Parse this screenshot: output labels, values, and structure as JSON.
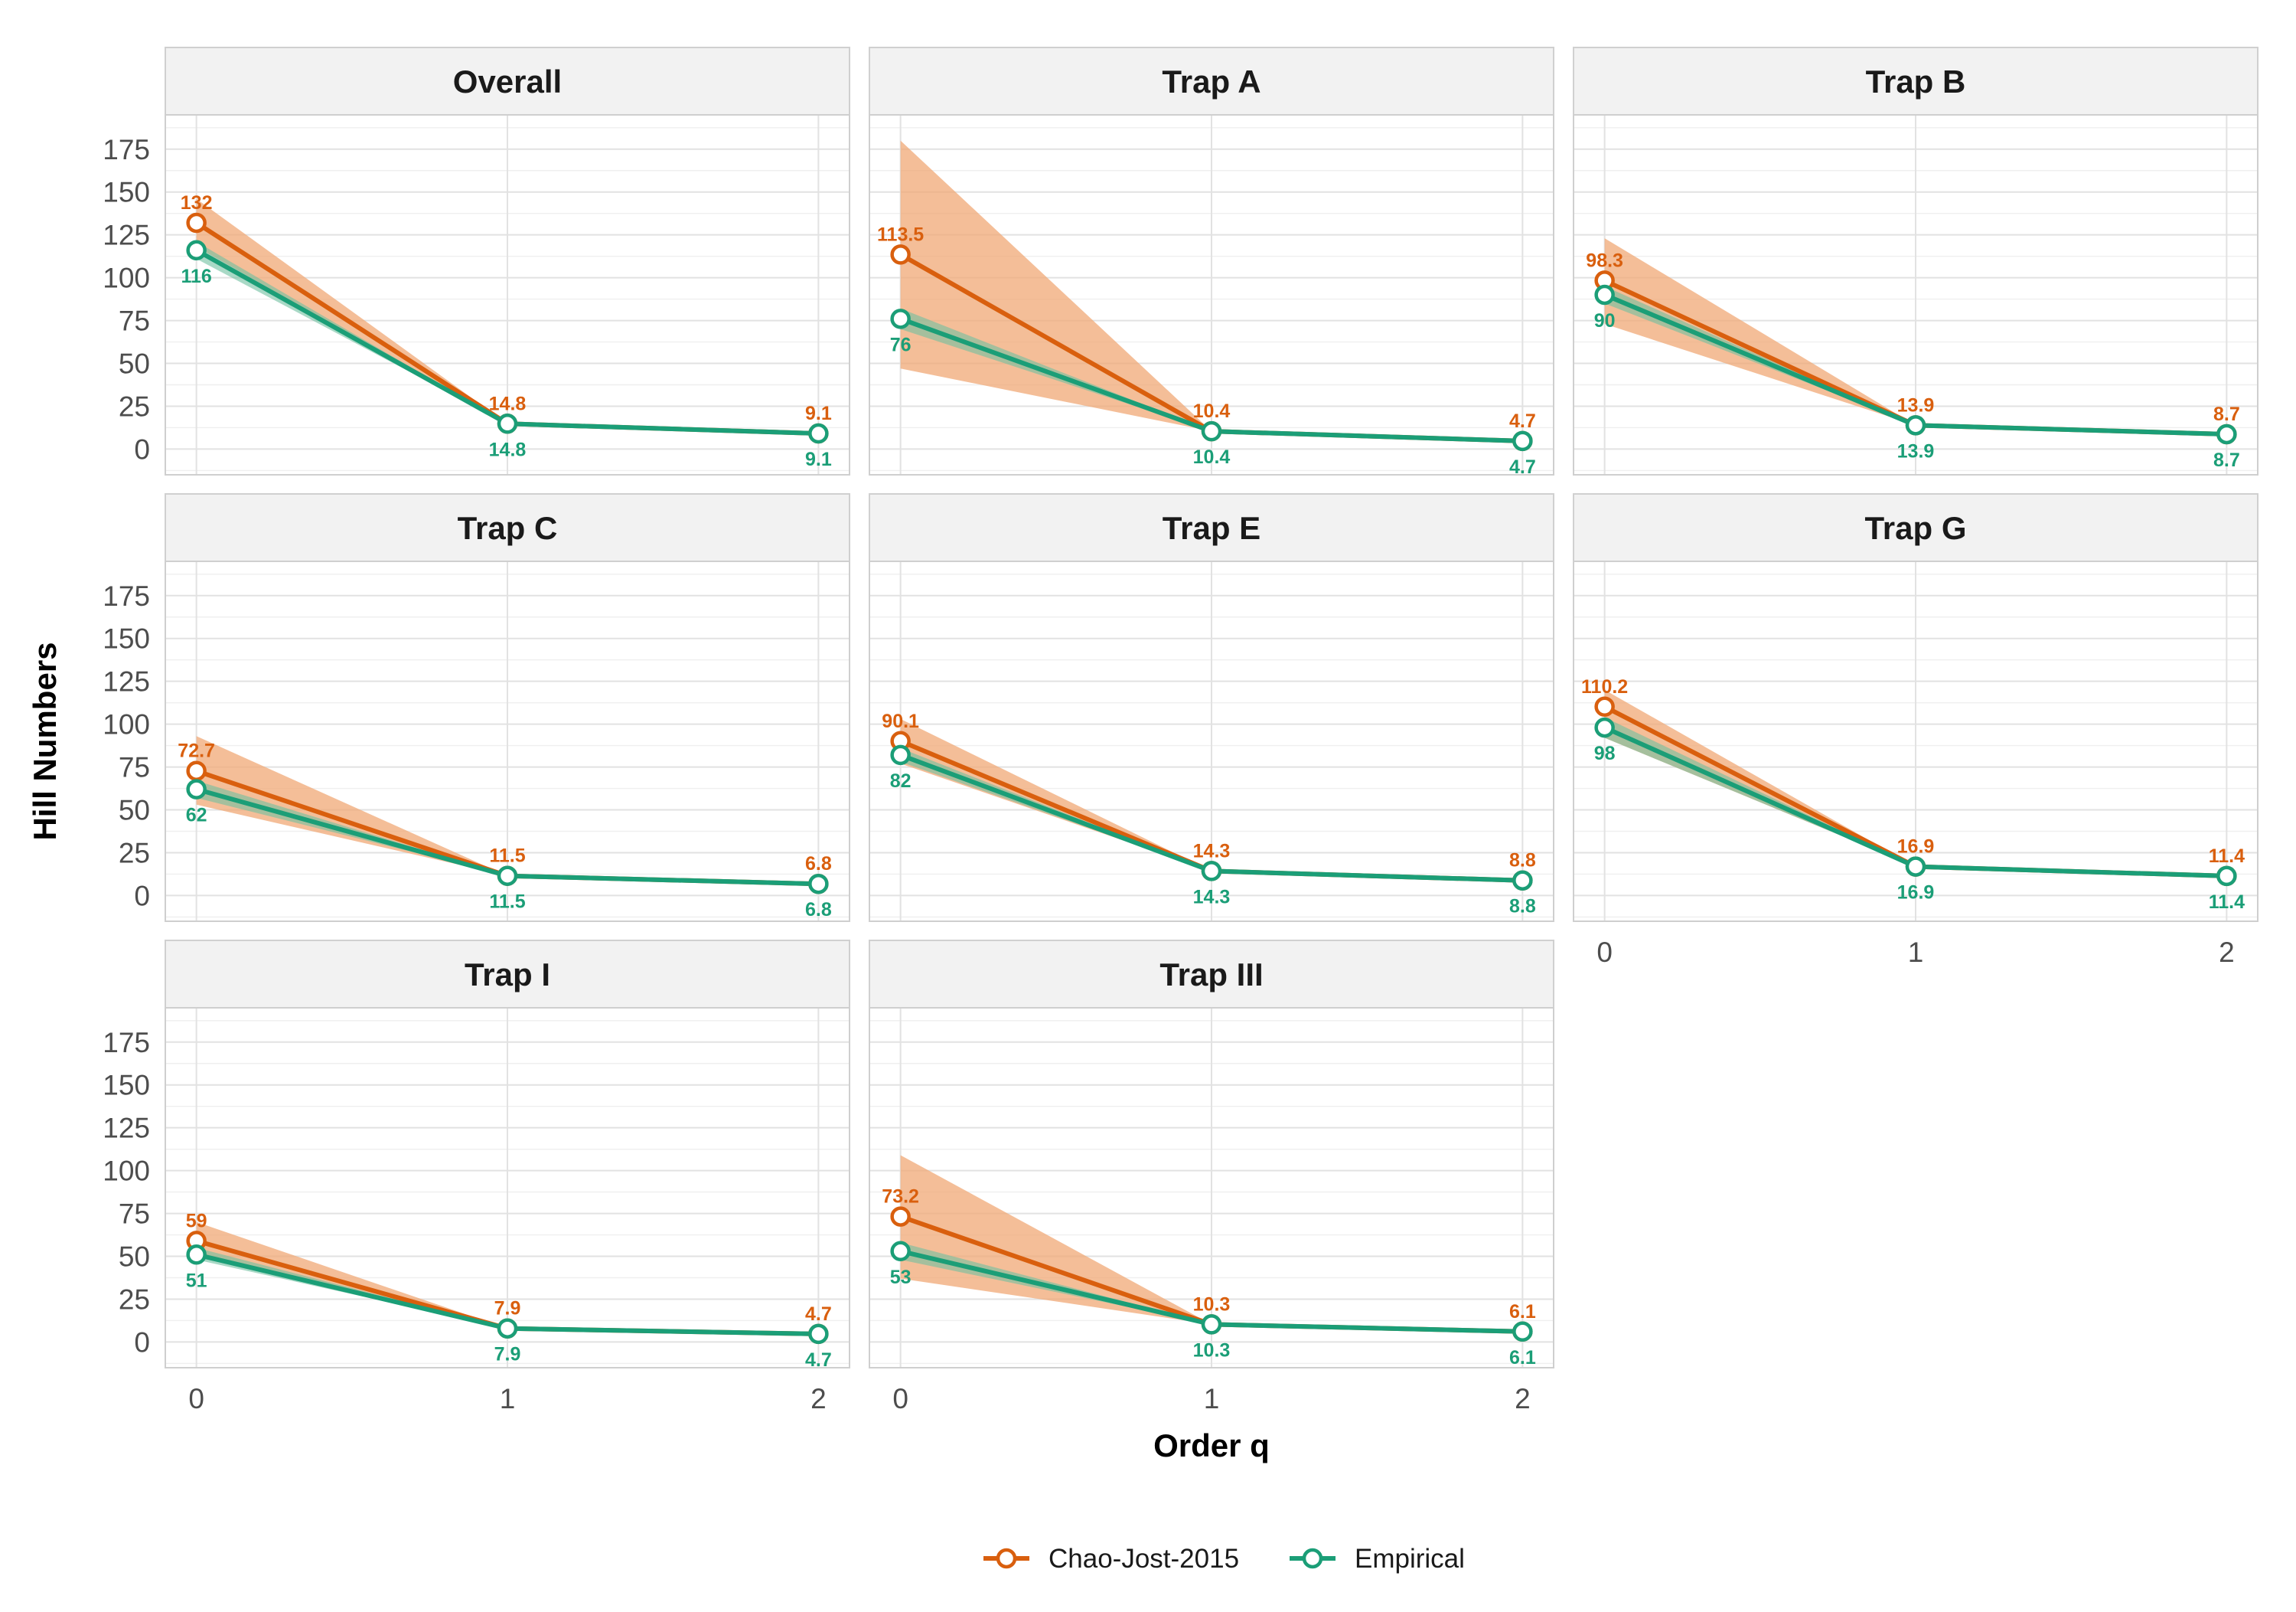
{
  "chart_data": {
    "type": "line",
    "xlabel": "Order q",
    "ylabel": "Hill Numbers",
    "x": [
      0,
      1,
      2
    ],
    "x_ticks": [
      "0",
      "1",
      "2"
    ],
    "ylim": [
      -15,
      195
    ],
    "y_ticks": [
      0,
      25,
      50,
      75,
      100,
      125,
      150,
      175
    ],
    "grid": true,
    "legend_position": "bottom",
    "series_styles": [
      {
        "name": "Chao-Jost-2015",
        "color": "#D95F0E",
        "ribbon_color": "#F0A875"
      },
      {
        "name": "Empirical",
        "color": "#1B9E77",
        "ribbon_color": "#6FBFA0"
      }
    ],
    "panels": [
      {
        "title": "Overall",
        "series": [
          {
            "name": "Chao-Jost-2015",
            "values": [
              132,
              14.8,
              9.1
            ],
            "ci_low": [
              118,
              14.8,
              9.1
            ],
            "ci_high": [
              146,
              14.8,
              9.1
            ]
          },
          {
            "name": "Empirical",
            "values": [
              116,
              14.8,
              9.1
            ],
            "ci_low": [
              111,
              14.8,
              9.1
            ],
            "ci_high": [
              121,
              14.8,
              9.1
            ]
          }
        ]
      },
      {
        "title": "Trap A",
        "series": [
          {
            "name": "Chao-Jost-2015",
            "values": [
              113.5,
              10.4,
              4.7
            ],
            "ci_low": [
              47,
              10.4,
              4.7
            ],
            "ci_high": [
              180,
              10.4,
              4.7
            ]
          },
          {
            "name": "Empirical",
            "values": [
              76,
              10.4,
              4.7
            ],
            "ci_low": [
              70,
              10.4,
              4.7
            ],
            "ci_high": [
              82,
              10.4,
              4.7
            ]
          }
        ]
      },
      {
        "title": "Trap B",
        "series": [
          {
            "name": "Chao-Jost-2015",
            "values": [
              98.3,
              13.9,
              8.7
            ],
            "ci_low": [
              73,
              13.9,
              8.7
            ],
            "ci_high": [
              123,
              13.9,
              8.7
            ]
          },
          {
            "name": "Empirical",
            "values": [
              90,
              13.9,
              8.7
            ],
            "ci_low": [
              85,
              13.9,
              8.7
            ],
            "ci_high": [
              95,
              13.9,
              8.7
            ]
          }
        ]
      },
      {
        "title": "Trap C",
        "series": [
          {
            "name": "Chao-Jost-2015",
            "values": [
              72.7,
              11.5,
              6.8
            ],
            "ci_low": [
              53,
              11.5,
              6.8
            ],
            "ci_high": [
              93,
              11.5,
              6.8
            ]
          },
          {
            "name": "Empirical",
            "values": [
              62,
              11.5,
              6.8
            ],
            "ci_low": [
              57,
              11.5,
              6.8
            ],
            "ci_high": [
              67,
              11.5,
              6.8
            ]
          }
        ]
      },
      {
        "title": "Trap E",
        "series": [
          {
            "name": "Chao-Jost-2015",
            "values": [
              90.1,
              14.3,
              8.8
            ],
            "ci_low": [
              77,
              14.3,
              8.8
            ],
            "ci_high": [
              103,
              14.3,
              8.8
            ]
          },
          {
            "name": "Empirical",
            "values": [
              82,
              14.3,
              8.8
            ],
            "ci_low": [
              78,
              14.3,
              8.8
            ],
            "ci_high": [
              86,
              14.3,
              8.8
            ]
          }
        ]
      },
      {
        "title": "Trap G",
        "series": [
          {
            "name": "Chao-Jost-2015",
            "values": [
              110.2,
              16.9,
              11.4
            ],
            "ci_low": [
              92,
              16.9,
              11.4
            ],
            "ci_high": [
              120,
              16.9,
              11.4
            ]
          },
          {
            "name": "Empirical",
            "values": [
              98,
              16.9,
              11.4
            ],
            "ci_low": [
              92,
              16.9,
              11.4
            ],
            "ci_high": [
              104,
              16.9,
              11.4
            ]
          }
        ]
      },
      {
        "title": "Trap I",
        "series": [
          {
            "name": "Chao-Jost-2015",
            "values": [
              59,
              7.9,
              4.7
            ],
            "ci_low": [
              50,
              7.9,
              4.7
            ],
            "ci_high": [
              70,
              7.9,
              4.7
            ]
          },
          {
            "name": "Empirical",
            "values": [
              51,
              7.9,
              4.7
            ],
            "ci_low": [
              48,
              7.9,
              4.7
            ],
            "ci_high": [
              55,
              7.9,
              4.7
            ]
          }
        ]
      },
      {
        "title": "Trap III",
        "series": [
          {
            "name": "Chao-Jost-2015",
            "values": [
              73.2,
              10.3,
              6.1
            ],
            "ci_low": [
              37,
              10.3,
              6.1
            ],
            "ci_high": [
              109,
              10.3,
              6.1
            ]
          },
          {
            "name": "Empirical",
            "values": [
              53,
              10.3,
              6.1
            ],
            "ci_low": [
              48,
              10.3,
              6.1
            ],
            "ci_high": [
              58,
              10.3,
              6.1
            ]
          }
        ]
      }
    ]
  }
}
